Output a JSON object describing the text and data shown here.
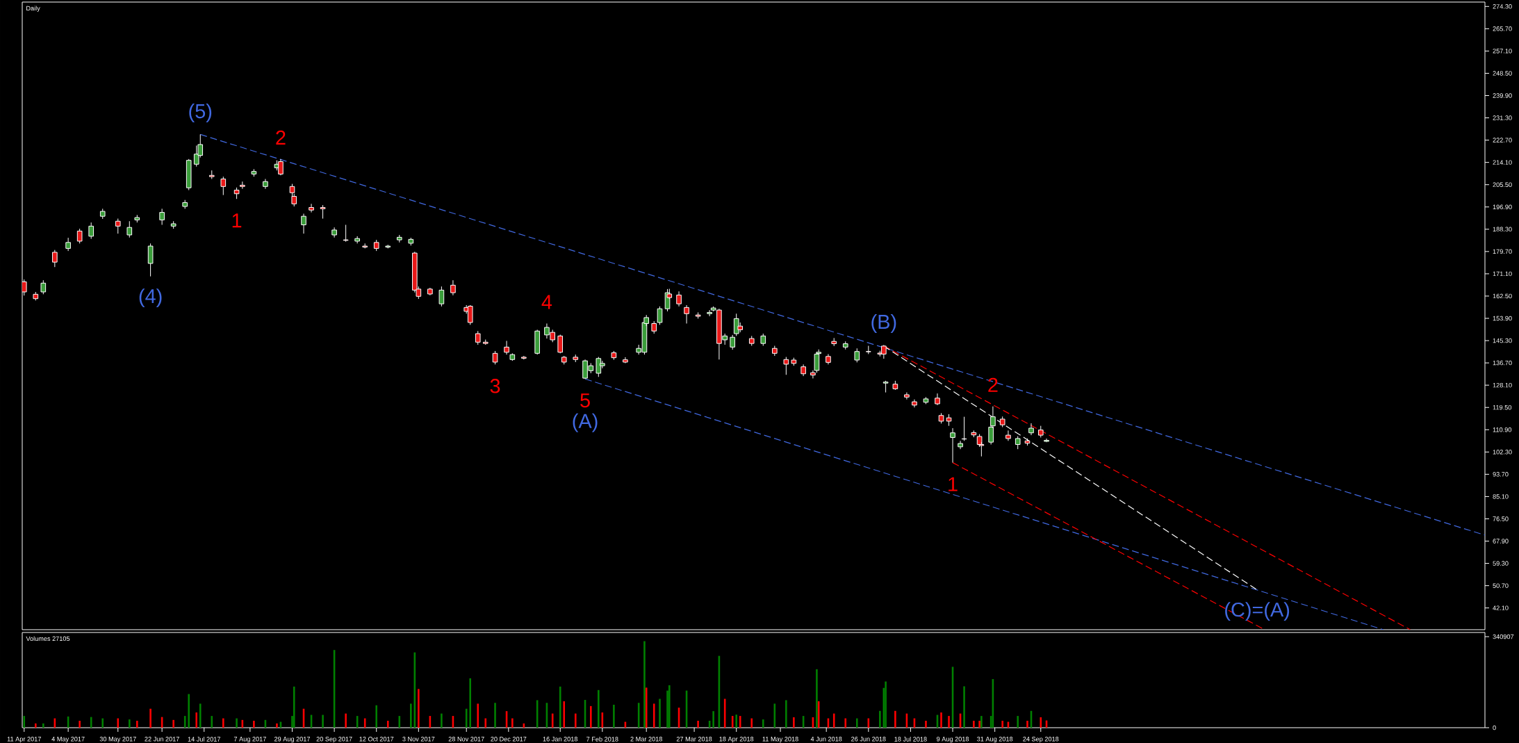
{
  "chart_data": [
    {
      "type": "candlestick",
      "title": "Daily",
      "x": [
        "2017-04-11",
        "2017-04-17",
        "2017-04-21",
        "2017-04-27",
        "2017-05-04",
        "2017-05-10",
        "2017-05-16",
        "2017-05-22",
        "2017-05-30",
        "2017-06-05",
        "2017-06-09",
        "2017-06-16",
        "2017-06-22",
        "2017-06-28",
        "2017-07-04",
        "2017-07-06",
        "2017-07-10",
        "2017-07-12",
        "2017-07-18",
        "2017-07-24",
        "2017-07-31",
        "2017-08-03",
        "2017-08-09",
        "2017-08-15",
        "2017-08-21",
        "2017-08-23",
        "2017-08-29",
        "2017-08-30",
        "2017-09-04",
        "2017-09-08",
        "2017-09-14",
        "2017-09-20",
        "2017-09-26",
        "2017-10-02",
        "2017-10-06",
        "2017-10-12",
        "2017-10-18",
        "2017-10-24",
        "2017-10-30",
        "2017-11-01",
        "2017-11-03",
        "2017-11-09",
        "2017-11-15",
        "2017-11-21",
        "2017-11-28",
        "2017-11-30",
        "2017-12-04",
        "2017-12-08",
        "2017-12-13",
        "2017-12-19",
        "2017-12-22",
        "2017-12-28",
        "2018-01-04",
        "2018-01-09",
        "2018-01-12",
        "2018-01-16",
        "2018-01-18",
        "2018-01-24",
        "2018-01-29",
        "2018-02-01",
        "2018-02-05",
        "2018-02-07",
        "2018-02-13",
        "2018-02-19",
        "2018-02-26",
        "2018-03-01",
        "2018-03-02",
        "2018-03-06",
        "2018-03-09",
        "2018-03-13",
        "2018-03-14",
        "2018-03-19",
        "2018-03-23",
        "2018-03-29",
        "2018-04-04",
        "2018-04-06",
        "2018-04-09",
        "2018-04-12",
        "2018-04-16",
        "2018-04-18",
        "2018-04-20",
        "2018-04-26",
        "2018-05-02",
        "2018-05-08",
        "2018-05-14",
        "2018-05-18",
        "2018-05-23",
        "2018-05-28",
        "2018-05-30",
        "2018-05-31",
        "2018-06-05",
        "2018-06-08",
        "2018-06-14",
        "2018-06-20",
        "2018-06-26",
        "2018-07-02",
        "2018-07-04",
        "2018-07-05",
        "2018-07-10",
        "2018-07-16",
        "2018-07-20",
        "2018-07-26",
        "2018-08-01",
        "2018-08-03",
        "2018-08-07",
        "2018-08-09",
        "2018-08-13",
        "2018-08-15",
        "2018-08-20",
        "2018-08-23",
        "2018-08-24",
        "2018-08-29",
        "2018-08-30",
        "2018-09-04",
        "2018-09-07",
        "2018-09-12",
        "2018-09-17",
        "2018-09-19",
        "2018-09-24",
        "2018-09-27"
      ],
      "ohlc": [
        [
          168.0,
          168.9,
          162.7,
          164.1
        ],
        [
          163.2,
          164.1,
          160.8,
          161.5
        ],
        [
          164.1,
          168.6,
          163.2,
          167.5
        ],
        [
          179.4,
          180.3,
          173.7,
          175.6
        ],
        [
          180.9,
          185.0,
          179.9,
          183.2
        ],
        [
          187.6,
          188.5,
          182.8,
          183.7
        ],
        [
          185.6,
          190.9,
          184.6,
          189.5
        ],
        [
          193.3,
          196.2,
          192.3,
          195.2
        ],
        [
          191.4,
          192.4,
          186.6,
          189.5
        ],
        [
          186.1,
          191.4,
          185.1,
          189.0
        ],
        [
          191.9,
          193.8,
          190.9,
          192.8
        ],
        [
          175.1,
          182.8,
          170.1,
          181.8
        ],
        [
          191.9,
          196.2,
          190.0,
          194.8
        ],
        [
          189.5,
          191.4,
          188.5,
          190.4
        ],
        [
          197.1,
          199.6,
          196.2,
          198.6
        ],
        [
          204.3,
          215.4,
          203.4,
          214.9
        ],
        [
          213.4,
          220.6,
          212.5,
          217.3
        ],
        [
          216.8,
          224.9,
          216.0,
          221.0
        ],
        [
          209.1,
          211.0,
          207.7,
          208.6
        ],
        [
          207.7,
          208.6,
          201.5,
          204.8
        ],
        [
          203.4,
          204.4,
          200.0,
          202.0
        ],
        [
          205.3,
          206.7,
          203.9,
          204.8
        ],
        [
          209.6,
          211.5,
          208.6,
          210.6
        ],
        [
          204.8,
          207.7,
          203.9,
          206.7
        ],
        [
          212.0,
          214.9,
          211.0,
          213.4
        ],
        [
          214.4,
          215.4,
          209.1,
          209.6
        ],
        [
          204.8,
          205.8,
          200.5,
          202.4
        ],
        [
          201.0,
          202.0,
          197.1,
          198.1
        ],
        [
          190.0,
          194.3,
          186.6,
          193.3
        ],
        [
          196.7,
          198.1,
          194.8,
          195.7
        ],
        [
          196.7,
          197.6,
          192.4,
          196.2
        ],
        [
          186.1,
          189.0,
          185.1,
          188.0
        ],
        [
          184.2,
          190.0,
          183.5,
          184.0
        ],
        [
          183.7,
          185.6,
          182.8,
          184.7
        ],
        [
          181.8,
          182.8,
          180.9,
          181.4
        ],
        [
          183.2,
          184.2,
          179.9,
          180.9
        ],
        [
          181.4,
          182.3,
          180.9,
          181.8
        ],
        [
          184.2,
          186.1,
          183.2,
          185.2
        ],
        [
          182.9,
          185.0,
          182.0,
          184.4
        ],
        [
          179.1,
          179.6,
          163.9,
          164.8
        ],
        [
          165.2,
          166.2,
          161.4,
          162.4
        ],
        [
          165.2,
          165.7,
          162.8,
          163.3
        ],
        [
          159.5,
          166.2,
          158.5,
          164.8
        ],
        [
          166.7,
          168.6,
          162.8,
          163.8
        ],
        [
          158.1,
          159.0,
          155.7,
          156.6
        ],
        [
          158.6,
          159.0,
          151.4,
          152.3
        ],
        [
          148.0,
          149.0,
          143.7,
          144.7
        ],
        [
          144.7,
          145.7,
          143.7,
          144.2
        ],
        [
          140.4,
          141.3,
          136.1,
          137.0
        ],
        [
          142.8,
          145.2,
          139.9,
          140.8
        ],
        [
          138.0,
          140.4,
          137.5,
          139.9
        ],
        [
          138.9,
          139.4,
          138.0,
          138.5
        ],
        [
          140.4,
          149.5,
          139.9,
          149.0
        ],
        [
          147.5,
          151.9,
          146.1,
          150.4
        ],
        [
          148.5,
          149.5,
          144.7,
          145.6
        ],
        [
          147.1,
          147.6,
          140.4,
          140.8
        ],
        [
          138.9,
          139.4,
          136.1,
          137.0
        ],
        [
          138.9,
          139.9,
          137.0,
          138.0
        ],
        [
          130.8,
          138.0,
          130.5,
          137.5
        ],
        [
          133.7,
          136.6,
          132.7,
          135.6
        ],
        [
          132.7,
          139.0,
          131.3,
          138.4
        ],
        [
          135.6,
          137.5,
          134.6,
          136.5
        ],
        [
          140.6,
          141.3,
          137.9,
          138.7
        ],
        [
          137.9,
          138.9,
          136.6,
          137.0
        ],
        [
          140.8,
          143.7,
          139.9,
          142.3
        ],
        [
          140.8,
          153.3,
          139.9,
          152.3
        ],
        [
          151.9,
          155.2,
          150.9,
          154.2
        ],
        [
          151.9,
          152.8,
          148.0,
          149.0
        ],
        [
          152.3,
          158.5,
          151.4,
          157.6
        ],
        [
          157.6,
          165.2,
          156.6,
          163.8
        ],
        [
          163.3,
          165.3,
          161.4,
          161.9
        ],
        [
          162.9,
          164.3,
          158.5,
          159.5
        ],
        [
          158.1,
          159.0,
          151.9,
          155.7
        ],
        [
          155.2,
          156.2,
          153.8,
          154.7
        ],
        [
          155.7,
          157.1,
          154.7,
          156.2
        ],
        [
          157.1,
          158.5,
          156.6,
          157.9
        ],
        [
          157.1,
          157.6,
          138.0,
          144.2
        ],
        [
          145.6,
          148.0,
          143.7,
          147.1
        ],
        [
          142.8,
          147.5,
          141.8,
          146.6
        ],
        [
          148.0,
          155.7,
          147.1,
          153.8
        ],
        [
          150.9,
          152.3,
          148.5,
          149.5
        ],
        [
          146.1,
          147.1,
          143.3,
          144.2
        ],
        [
          144.2,
          148.0,
          143.3,
          147.1
        ],
        [
          142.3,
          143.3,
          139.4,
          140.4
        ],
        [
          138.0,
          139.0,
          132.1,
          136.2
        ],
        [
          137.8,
          138.7,
          135.6,
          136.5
        ],
        [
          135.2,
          136.1,
          131.6,
          132.5
        ],
        [
          132.9,
          133.8,
          130.7,
          132.0
        ],
        [
          133.8,
          141.0,
          132.9,
          140.1
        ],
        [
          140.3,
          141.9,
          139.9,
          140.8
        ],
        [
          139.2,
          140.1,
          136.1,
          136.9
        ],
        [
          145.0,
          146.3,
          143.2,
          144.1
        ],
        [
          142.8,
          145.0,
          141.9,
          144.1
        ],
        [
          137.8,
          142.3,
          136.9,
          141.1
        ],
        [
          141.1,
          143.3,
          140.1,
          141.0
        ],
        [
          140.5,
          141.4,
          139.2,
          140.1
        ],
        [
          143.2,
          143.6,
          138.3,
          140.1
        ],
        [
          128.9,
          129.8,
          125.3,
          129.3
        ],
        [
          128.5,
          129.8,
          126.3,
          126.7
        ],
        [
          124.4,
          125.3,
          122.6,
          123.5
        ],
        [
          121.7,
          122.6,
          119.5,
          120.4
        ],
        [
          121.5,
          123.5,
          120.8,
          122.8
        ],
        [
          123.1,
          124.9,
          120.4,
          120.9
        ],
        [
          116.4,
          117.3,
          113.3,
          114.2
        ],
        [
          115.5,
          116.9,
          112.4,
          114.2
        ],
        [
          107.9,
          111.5,
          98.2,
          109.7
        ],
        [
          104.3,
          106.6,
          103.4,
          105.6
        ],
        [
          107.4,
          115.9,
          106.6,
          107.3
        ],
        [
          109.8,
          110.6,
          108.0,
          108.9
        ],
        [
          108.3,
          109.2,
          104.3,
          105.2
        ],
        [
          105.2,
          106.1,
          100.6,
          104.8
        ],
        [
          106.1,
          112.8,
          105.2,
          111.9
        ],
        [
          112.4,
          119.9,
          111.5,
          115.9
        ],
        [
          115.0,
          116.0,
          111.9,
          112.8
        ],
        [
          108.8,
          110.6,
          106.6,
          107.5
        ],
        [
          105.2,
          108.4,
          103.4,
          107.5
        ],
        [
          106.6,
          107.5,
          104.8,
          105.7
        ],
        [
          109.7,
          113.4,
          108.8,
          111.5
        ],
        [
          110.8,
          112.4,
          107.9,
          108.8
        ],
        [
          106.4,
          107.5,
          106.1,
          106.8
        ]
      ],
      "colors": [
        "#e81818",
        "#e81818",
        "#3a9d3a",
        "#e81818",
        "#3a9d3a",
        "#e81818",
        "#3a9d3a",
        "#3a9d3a",
        "#e81818",
        "#3a9d3a",
        "#3a9d3a",
        "#3a9d3a",
        "#3a9d3a",
        "#3a9d3a",
        "#3a9d3a",
        "#3a9d3a",
        "#3a9d3a",
        "#3a9d3a",
        "#e81818",
        "#e81818",
        "#e81818",
        "#e81818",
        "#3a9d3a",
        "#3a9d3a",
        "#3a9d3a",
        "#e81818",
        "#e81818",
        "#e81818",
        "#3a9d3a",
        "#e81818",
        "#e81818",
        "#3a9d3a",
        "#e81818",
        "#3a9d3a",
        "#e81818",
        "#e81818",
        "#3a9d3a",
        "#3a9d3a",
        "#3a9d3a",
        "#e81818",
        "#e81818",
        "#e81818",
        "#3a9d3a",
        "#e81818",
        "#e81818",
        "#e81818",
        "#e81818",
        "#e81818",
        "#e81818",
        "#e81818",
        "#3a9d3a",
        "#e81818",
        "#3a9d3a",
        "#3a9d3a",
        "#e81818",
        "#e81818",
        "#e81818",
        "#e81818",
        "#3a9d3a",
        "#3a9d3a",
        "#3a9d3a",
        "#3a9d3a",
        "#e81818",
        "#e81818",
        "#3a9d3a",
        "#3a9d3a",
        "#3a9d3a",
        "#e81818",
        "#3a9d3a",
        "#3a9d3a",
        "#e81818",
        "#e81818",
        "#e81818",
        "#e81818",
        "#3a9d3a",
        "#3a9d3a",
        "#e81818",
        "#3a9d3a",
        "#3a9d3a",
        "#3a9d3a",
        "#e81818",
        "#e81818",
        "#3a9d3a",
        "#e81818",
        "#e81818",
        "#e81818",
        "#e81818",
        "#e81818",
        "#3a9d3a",
        "#3a9d3a",
        "#e81818",
        "#e81818",
        "#3a9d3a",
        "#3a9d3a",
        "#e81818",
        "#e81818",
        "#e81818",
        "#3a9d3a",
        "#e81818",
        "#e81818",
        "#e81818",
        "#3a9d3a",
        "#e81818",
        "#e81818",
        "#e81818",
        "#3a9d3a",
        "#3a9d3a",
        "#e81818",
        "#e81818",
        "#e81818",
        "#e81818",
        "#3a9d3a",
        "#3a9d3a",
        "#e81818",
        "#e81818",
        "#3a9d3a",
        "#e81818",
        "#3a9d3a",
        "#e81818",
        "#3a9d3a"
      ],
      "series": [
        {
          "type": "line",
          "x": [
            "2017-07-12",
            "2019-05-14"
          ],
          "values": [
            224.9,
            70.2
          ],
          "color": "#4169e1",
          "line_style": "dashed"
        },
        {
          "type": "line",
          "x": [
            "2018-01-29",
            "2019-03-22"
          ],
          "values": [
            130.5,
            33.7
          ],
          "color": "#4169e1",
          "line_style": "dashed"
        },
        {
          "type": "line",
          "x": [
            "2018-07-04",
            "2019-04-05"
          ],
          "values": [
            143.2,
            33.7
          ],
          "color": "#ff0000",
          "line_style": "dashed"
        },
        {
          "type": "line",
          "x": [
            "2018-08-09",
            "2019-01-19"
          ],
          "values": [
            98.2,
            33.7
          ],
          "color": "#ff0000",
          "line_style": "dashed"
        },
        {
          "type": "line",
          "x": [
            "2018-07-04",
            "2019-01-15"
          ],
          "values": [
            143.2,
            49.1
          ],
          "color": "#ffffff",
          "line_style": "dashed"
        }
      ],
      "xlim": [
        "2017-04-10",
        "2019-05-14"
      ],
      "ylim": [
        33.7,
        276.0
      ],
      "yticks": [
        {
          "value": 42.1,
          "label": "42.10"
        },
        {
          "value": 50.7,
          "label": "50.70"
        },
        {
          "value": 59.3,
          "label": "59.30"
        },
        {
          "value": 67.9,
          "label": "67.90"
        },
        {
          "value": 76.5,
          "label": "76.50"
        },
        {
          "value": 85.1,
          "label": "85.10"
        },
        {
          "value": 93.7,
          "label": "93.70"
        },
        {
          "value": 102.3,
          "label": "102.30"
        },
        {
          "value": 110.9,
          "label": "110.90"
        },
        {
          "value": 119.5,
          "label": "119.50"
        },
        {
          "value": 128.1,
          "label": "128.10"
        },
        {
          "value": 136.7,
          "label": "136.70"
        },
        {
          "value": 145.3,
          "label": "145.30"
        },
        {
          "value": 153.9,
          "label": "153.90"
        },
        {
          "value": 162.5,
          "label": "162.50"
        },
        {
          "value": 171.1,
          "label": "171.10"
        },
        {
          "value": 179.7,
          "label": "179.70"
        },
        {
          "value": 188.3,
          "label": "188.30"
        },
        {
          "value": 196.9,
          "label": "196.90"
        },
        {
          "value": 205.5,
          "label": "205.50"
        },
        {
          "value": 214.1,
          "label": "214.10"
        },
        {
          "value": 222.7,
          "label": "222.70"
        },
        {
          "value": 231.3,
          "label": "231.30"
        },
        {
          "value": 239.9,
          "label": "239.90"
        },
        {
          "value": 248.5,
          "label": "248.50"
        },
        {
          "value": 257.1,
          "label": "257.10"
        },
        {
          "value": 265.7,
          "label": "265.70"
        },
        {
          "value": 274.3,
          "label": "274.30"
        }
      ],
      "tick_labels": "y",
      "annotations": [
        {
          "text": "(4)",
          "x": "2017-06-16",
          "y": 170.1
        },
        {
          "text": "(5)",
          "x": "2017-07-12",
          "y": 224.9
        },
        {
          "text": "1",
          "x": "2017-07-31",
          "y": 200.0
        },
        {
          "text": "2",
          "x": "2017-08-23",
          "y": 215.4
        },
        {
          "text": "3",
          "x": "2017-12-13",
          "y": 136.1
        },
        {
          "text": "4",
          "x": "2018-01-09",
          "y": 151.9
        },
        {
          "text": "5",
          "x": "2018-01-29",
          "y": 130.5
        },
        {
          "text": "(A)",
          "x": "2018-01-29",
          "y": 130.5
        },
        {
          "text": "(B)",
          "x": "2018-07-04",
          "y": 143.6
        },
        {
          "text": "1",
          "x": "2018-08-09",
          "y": 98.2
        },
        {
          "text": "2",
          "x": "2018-08-30",
          "y": 119.9
        },
        {
          "text": "(C)=(A)",
          "x": "2019-01-15",
          "y": 49.1
        }
      ]
    },
    {
      "type": "bar",
      "title": "Volumes 27105",
      "x": [
        "2017-04-11",
        "2017-04-17",
        "2017-04-21",
        "2017-04-27",
        "2017-05-04",
        "2017-05-10",
        "2017-05-16",
        "2017-05-22",
        "2017-05-30",
        "2017-06-05",
        "2017-06-09",
        "2017-06-16",
        "2017-06-22",
        "2017-06-28",
        "2017-07-04",
        "2017-07-06",
        "2017-07-10",
        "2017-07-12",
        "2017-07-18",
        "2017-07-24",
        "2017-07-31",
        "2017-08-03",
        "2017-08-09",
        "2017-08-15",
        "2017-08-21",
        "2017-08-23",
        "2017-08-29",
        "2017-08-30",
        "2017-09-04",
        "2017-09-08",
        "2017-09-14",
        "2017-09-20",
        "2017-09-26",
        "2017-10-02",
        "2017-10-06",
        "2017-10-12",
        "2017-10-18",
        "2017-10-24",
        "2017-10-30",
        "2017-11-01",
        "2017-11-03",
        "2017-11-09",
        "2017-11-15",
        "2017-11-21",
        "2017-11-28",
        "2017-11-30",
        "2017-12-04",
        "2017-12-08",
        "2017-12-13",
        "2017-12-19",
        "2017-12-22",
        "2017-12-28",
        "2018-01-04",
        "2018-01-09",
        "2018-01-12",
        "2018-01-16",
        "2018-01-18",
        "2018-01-24",
        "2018-01-29",
        "2018-02-01",
        "2018-02-05",
        "2018-02-07",
        "2018-02-13",
        "2018-02-19",
        "2018-02-26",
        "2018-03-01",
        "2018-03-02",
        "2018-03-06",
        "2018-03-09",
        "2018-03-13",
        "2018-03-14",
        "2018-03-19",
        "2018-03-23",
        "2018-03-29",
        "2018-04-04",
        "2018-04-06",
        "2018-04-09",
        "2018-04-12",
        "2018-04-16",
        "2018-04-18",
        "2018-04-20",
        "2018-04-26",
        "2018-05-02",
        "2018-05-08",
        "2018-05-14",
        "2018-05-18",
        "2018-05-23",
        "2018-05-28",
        "2018-05-30",
        "2018-05-31",
        "2018-06-05",
        "2018-06-08",
        "2018-06-14",
        "2018-06-20",
        "2018-06-26",
        "2018-07-02",
        "2018-07-04",
        "2018-07-05",
        "2018-07-10",
        "2018-07-16",
        "2018-07-20",
        "2018-07-26",
        "2018-08-01",
        "2018-08-03",
        "2018-08-07",
        "2018-08-09",
        "2018-08-13",
        "2018-08-15",
        "2018-08-20",
        "2018-08-23",
        "2018-08-24",
        "2018-08-29",
        "2018-08-30",
        "2018-09-04",
        "2018-09-07",
        "2018-09-12",
        "2018-09-17",
        "2018-09-19",
        "2018-09-24",
        "2018-09-27"
      ],
      "values": [
        44000,
        16000,
        16000,
        35000,
        42000,
        26000,
        40000,
        35000,
        35000,
        31000,
        26000,
        71000,
        40000,
        29000,
        44000,
        126000,
        57000,
        90000,
        44000,
        35000,
        35000,
        29000,
        26000,
        29000,
        16000,
        22000,
        44000,
        154000,
        71000,
        48000,
        48000,
        291000,
        53000,
        44000,
        35000,
        84000,
        26000,
        44000,
        90000,
        282000,
        145000,
        44000,
        53000,
        44000,
        71000,
        185000,
        90000,
        35000,
        93000,
        62000,
        35000,
        16000,
        103000,
        93000,
        53000,
        154000,
        99000,
        53000,
        104000,
        81000,
        141000,
        57000,
        86000,
        22000,
        93000,
        324000,
        150000,
        90000,
        108000,
        139000,
        159000,
        75000,
        139000,
        26000,
        26000,
        62000,
        269000,
        108000,
        44000,
        49000,
        44000,
        35000,
        31000,
        90000,
        103000,
        39000,
        44000,
        39000,
        219000,
        99000,
        35000,
        53000,
        35000,
        35000,
        35000,
        63000,
        149000,
        173000,
        63000,
        53000,
        35000,
        26000,
        48000,
        57000,
        44000,
        228000,
        53000,
        155000,
        26000,
        26000,
        44000,
        44000,
        182000,
        26000,
        22000,
        44000,
        26000,
        63000,
        39000,
        27105
      ],
      "colors": [
        "#008000",
        "#ff0000",
        "#008000",
        "#ff0000",
        "#008000",
        "#ff0000",
        "#008000",
        "#008000",
        "#ff0000",
        "#008000",
        "#ff0000",
        "#ff0000",
        "#ff0000",
        "#ff0000",
        "#008000",
        "#008000",
        "#ff0000",
        "#008000",
        "#008000",
        "#ff0000",
        "#008000",
        "#ff0000",
        "#ff0000",
        "#008000",
        "#ff0000",
        "#008000",
        "#008000",
        "#008000",
        "#ff0000",
        "#008000",
        "#008000",
        "#008000",
        "#ff0000",
        "#008000",
        "#ff0000",
        "#008000",
        "#ff0000",
        "#008000",
        "#008000",
        "#008000",
        "#ff0000",
        "#ff0000",
        "#008000",
        "#ff0000",
        "#008000",
        "#008000",
        "#ff0000",
        "#ff0000",
        "#008000",
        "#ff0000",
        "#ff0000",
        "#ff0000",
        "#008000",
        "#008000",
        "#ff0000",
        "#008000",
        "#ff0000",
        "#ff0000",
        "#008000",
        "#ff0000",
        "#008000",
        "#ff0000",
        "#008000",
        "#ff0000",
        "#008000",
        "#008000",
        "#ff0000",
        "#ff0000",
        "#008000",
        "#008000",
        "#008000",
        "#ff0000",
        "#008000",
        "#ff0000",
        "#008000",
        "#008000",
        "#008000",
        "#ff0000",
        "#ff0000",
        "#008000",
        "#ff0000",
        "#ff0000",
        "#008000",
        "#008000",
        "#008000",
        "#ff0000",
        "#008000",
        "#ff0000",
        "#008000",
        "#ff0000",
        "#ff0000",
        "#ff0000",
        "#ff0000",
        "#008000",
        "#ff0000",
        "#008000",
        "#008000",
        "#008000",
        "#ff0000",
        "#ff0000",
        "#ff0000",
        "#ff0000",
        "#008000",
        "#ff0000",
        "#ff0000",
        "#008000",
        "#ff0000",
        "#008000",
        "#ff0000",
        "#ff0000",
        "#008000",
        "#008000",
        "#008000",
        "#ff0000",
        "#ff0000",
        "#008000",
        "#ff0000",
        "#008000",
        "#ff0000",
        "#ff0000"
      ],
      "xlim": [
        "2017-04-10",
        "2019-05-14"
      ],
      "ylim": [
        0,
        356600
      ],
      "yticks": [
        0,
        340907
      ],
      "xticks": [
        {
          "value": "2017-04-11",
          "label": "11 Apr 2017"
        },
        {
          "value": "2017-05-04",
          "label": "4 May 2017"
        },
        {
          "value": "2017-05-30",
          "label": "30 May 2017"
        },
        {
          "value": "2017-06-22",
          "label": "22 Jun 2017"
        },
        {
          "value": "2017-07-14",
          "label": "14 Jul 2017"
        },
        {
          "value": "2017-08-07",
          "label": "7 Aug 2017"
        },
        {
          "value": "2017-08-29",
          "label": "29 Aug 2017"
        },
        {
          "value": "2017-09-20",
          "label": "20 Sep 2017"
        },
        {
          "value": "2017-10-12",
          "label": "12 Oct 2017"
        },
        {
          "value": "2017-11-03",
          "label": "3 Nov 2017"
        },
        {
          "value": "2017-11-28",
          "label": "28 Nov 2017"
        },
        {
          "value": "2017-12-20",
          "label": "20 Dec 2017"
        },
        {
          "value": "2018-01-16",
          "label": "16 Jan 2018"
        },
        {
          "value": "2018-02-07",
          "label": "7 Feb 2018"
        },
        {
          "value": "2018-03-02",
          "label": "2 Mar 2018"
        },
        {
          "value": "2018-03-27",
          "label": "27 Mar 2018"
        },
        {
          "value": "2018-04-18",
          "label": "18 Apr 2018"
        },
        {
          "value": "2018-05-11",
          "label": "11 May 2018"
        },
        {
          "value": "2018-06-04",
          "label": "4 Jun 2018"
        },
        {
          "value": "2018-06-26",
          "label": "26 Jun 2018"
        },
        {
          "value": "2018-07-18",
          "label": "18 Jul 2018"
        },
        {
          "value": "2018-08-09",
          "label": "9 Aug 2018"
        },
        {
          "value": "2018-08-31",
          "label": "31 Aug 2018"
        },
        {
          "value": "2018-09-24",
          "label": "24 Sep 2018"
        }
      ]
    }
  ]
}
